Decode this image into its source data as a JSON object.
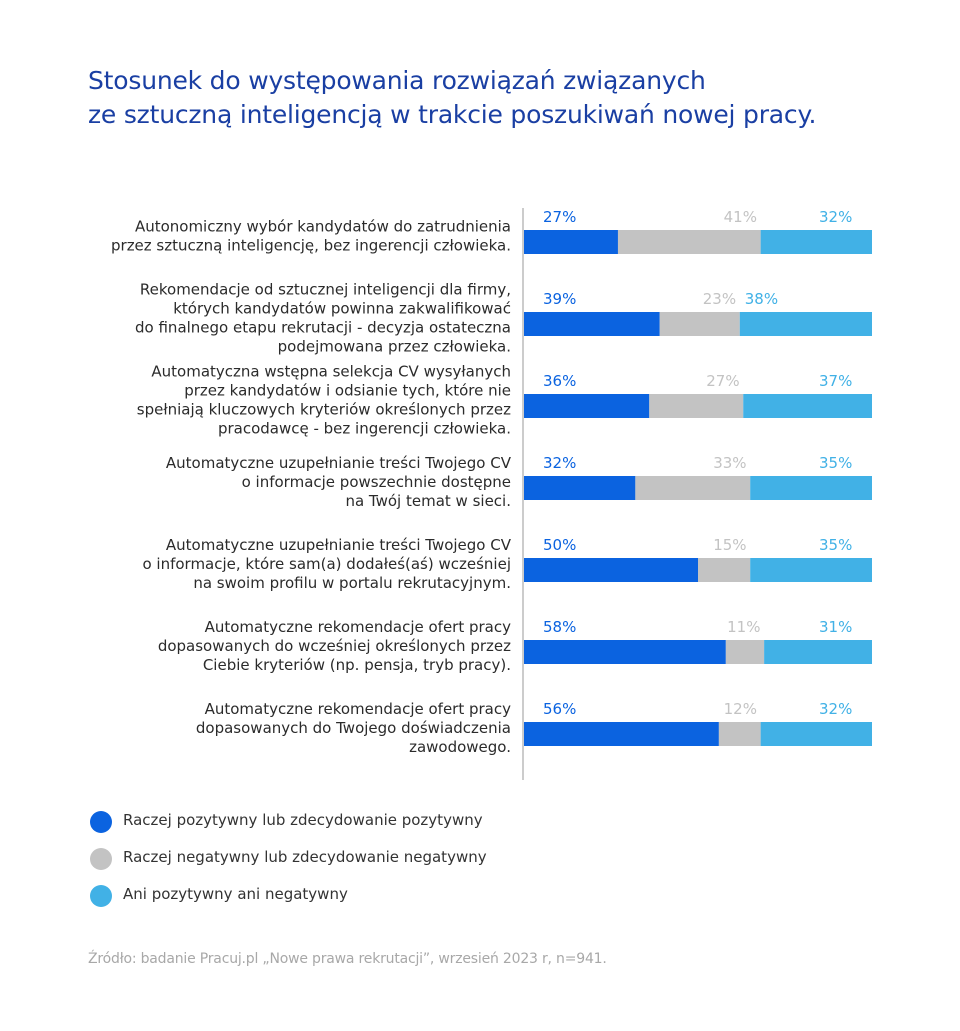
{
  "title": {
    "line1": "Stosunek do występowania rozwiązań związanych",
    "line2": "ze sztuczną inteligencją w trakcie poszukiwań nowej pracy."
  },
  "colors": {
    "positive": "#0b63e0",
    "negative": "#c3c3c3",
    "neutral": "#41b1e6",
    "title": "#1a3fa3",
    "axis": "#9a9a9a"
  },
  "chart_data": {
    "type": "bar",
    "orientation": "horizontal",
    "stacked": true,
    "normalized": true,
    "title": "Stosunek do występowania rozwiązań związanych ze sztuczną inteligencją w trakcie poszukiwań nowej pracy.",
    "xlim": [
      0,
      100
    ],
    "grid": false,
    "legend_position": "bottom-left",
    "categories": [
      [
        "Autonomiczny wybór kandydatów do zatrudnienia",
        "przez sztuczną inteligencję, bez ingerencji człowieka."
      ],
      [
        "Rekomendacje od sztucznej inteligencji dla firmy,",
        "których kandydatów powinna zakwalifikować",
        "do finalnego etapu rekrutacji - decyzja ostateczna",
        "podejmowana przez człowieka."
      ],
      [
        "Automatyczna wstępna selekcja CV wysyłanych",
        "przez kandydatów i odsianie tych, które nie",
        "spełniają kluczowych kryteriów określonych przez",
        "pracodawcę - bez ingerencji człowieka."
      ],
      [
        "Automatyczne uzupełnianie treści Twojego CV",
        "o informacje powszechnie dostępne",
        "na Twój temat w sieci."
      ],
      [
        "Automatyczne uzupełnianie treści Twojego CV",
        "o informacje, które sam(a) dodałeś(aś) wcześniej",
        "na swoim profilu w portalu rekrutacyjnym."
      ],
      [
        "Automatyczne rekomendacje ofert pracy",
        "dopasowanych do wcześniej określonych przez",
        "Ciebie kryteriów (np. pensja, tryb pracy)."
      ],
      [
        "Automatyczne rekomendacje ofert pracy",
        "dopasowanych do Twojego doświadczenia",
        "zawodowego."
      ]
    ],
    "series": [
      {
        "name": "Raczej pozytywny lub zdecydowanie pozytywny",
        "key": "positive",
        "values": [
          27,
          39,
          36,
          32,
          50,
          58,
          56
        ]
      },
      {
        "name": "Raczej negatywny lub zdecydowanie negatywny",
        "key": "negative",
        "values": [
          41,
          23,
          27,
          33,
          15,
          11,
          12
        ]
      },
      {
        "name": "Ani pozytywny ani negatywny",
        "key": "neutral",
        "values": [
          32,
          38,
          37,
          35,
          35,
          31,
          32
        ]
      }
    ]
  },
  "source": "Źródło: badanie Pracuj.pl „Nowe prawa rekrutacji”, wrzesień 2023 r, n=941."
}
